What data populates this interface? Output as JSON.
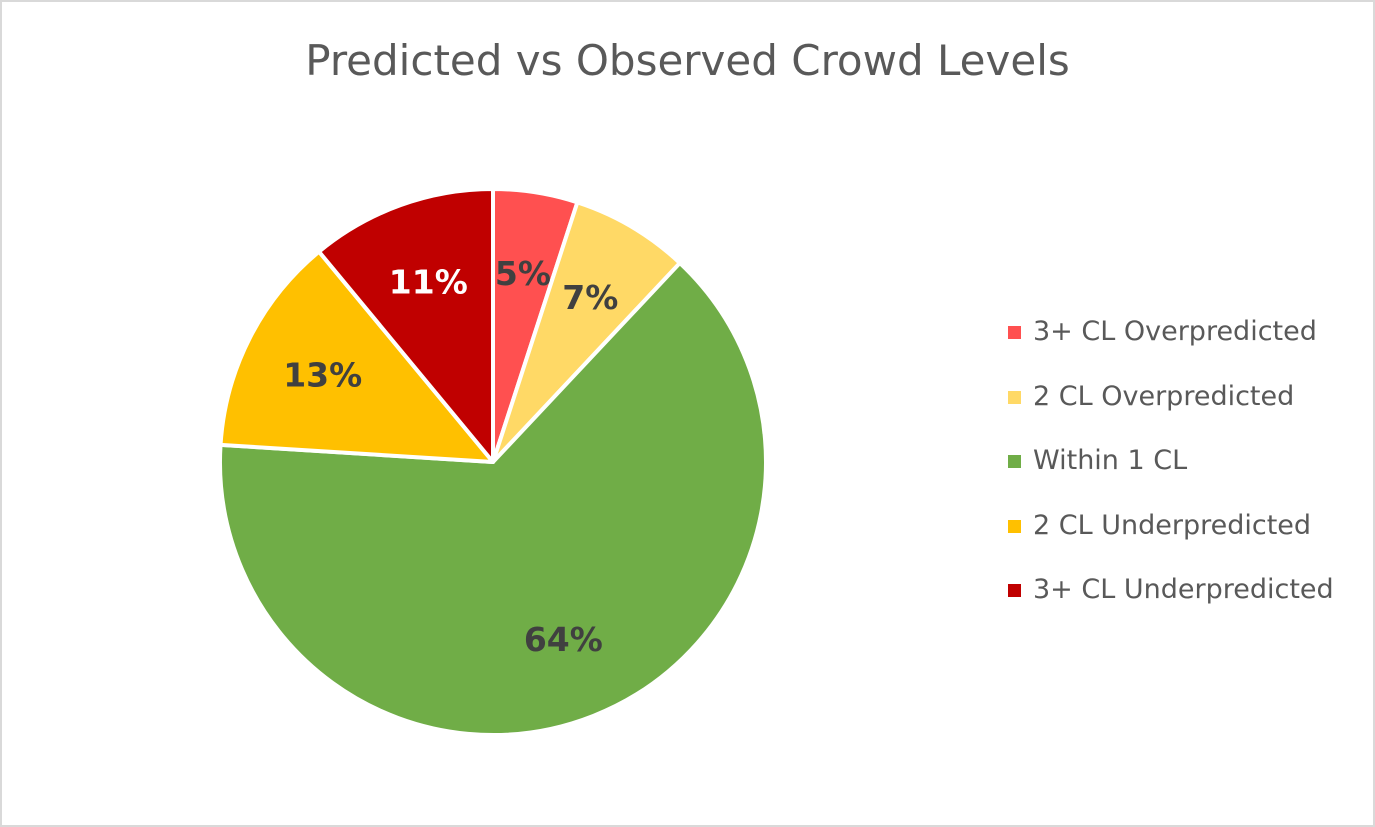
{
  "chart_data": {
    "type": "pie",
    "title": "Predicted vs Observed Crowd Levels",
    "categories": [
      "3+ CL Overpredicted",
      "2 CL Overpredicted",
      "Within 1 CL",
      "2 CL Underpredicted",
      "3+ CL Underpredicted"
    ],
    "values": [
      5,
      7,
      64,
      13,
      11
    ],
    "data_labels": [
      "5%",
      "7%",
      "64%",
      "13%",
      "11%"
    ],
    "colors": [
      "#ff5050",
      "#ffd966",
      "#70ad47",
      "#ffc000",
      "#c00000"
    ],
    "label_colors": [
      "#404040",
      "#404040",
      "#404040",
      "#404040",
      "#ffffff"
    ],
    "legend_position": "right",
    "start_angle_deg": 0,
    "direction": "clockwise"
  }
}
